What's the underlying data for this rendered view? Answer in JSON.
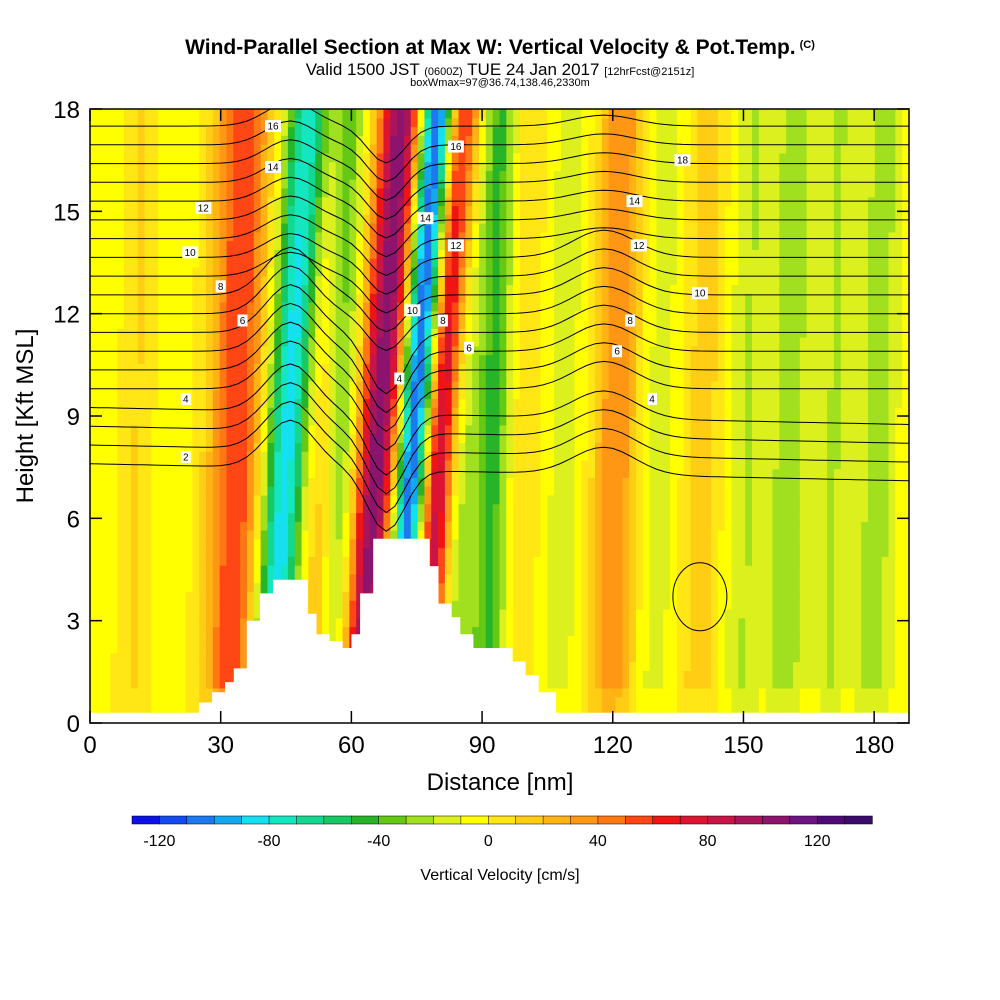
{
  "header": {
    "title": "Wind-Parallel Section at Max W: Vertical Velocity & Pot.Temp.",
    "copyright": "(C)",
    "valid_prefix": "Valid 1500 JST",
    "valid_utc": "(0600Z)",
    "valid_date": "TUE 24 Jan 2017",
    "forecast": "[12hrFcst@2151z]",
    "box_info": "boxWmax=97@36.74,138.46,2330m"
  },
  "chart_data": {
    "type": "heatmap",
    "title": "Wind-Parallel Section at Max W: Vertical Velocity & Pot.Temp.",
    "xlabel": "Distance [nm]",
    "ylabel": "Height [Kft MSL]",
    "xlim": [
      0,
      188
    ],
    "ylim": [
      0,
      18
    ],
    "xticks": [
      0,
      30,
      60,
      90,
      120,
      150,
      180
    ],
    "yticks": [
      0,
      3,
      6,
      9,
      12,
      15,
      18
    ],
    "colorbar": {
      "label": "Vertical Velocity [cm/s]",
      "min": -130,
      "max": 140,
      "step": 10,
      "tick_values": [
        -120,
        -80,
        -40,
        0,
        40,
        80,
        120
      ],
      "tick_labels": [
        "-120",
        "-80",
        "-40",
        "0",
        "40",
        "80",
        "120"
      ],
      "colors": [
        "#0a10e6",
        "#1448f0",
        "#1e78f0",
        "#14a8f0",
        "#14e0f0",
        "#14e6c0",
        "#14d890",
        "#18c864",
        "#28b428",
        "#64c814",
        "#a0e01e",
        "#dcf01e",
        "#ffff00",
        "#ffe614",
        "#ffcd14",
        "#ffb414",
        "#ff9614",
        "#ff7814",
        "#ff4614",
        "#f01414",
        "#dc1432",
        "#c81446",
        "#aa145a",
        "#8c146e",
        "#6e1482",
        "#500a78",
        "#3c0a6e"
      ]
    },
    "updraft_bands": [
      {
        "x": 2,
        "half_width": 6,
        "w": -6
      },
      {
        "x": 10,
        "half_width": 4,
        "w": 12
      },
      {
        "x": 18,
        "half_width": 5,
        "w": -8
      },
      {
        "x": 33,
        "half_width": 6,
        "w": 60
      },
      {
        "x": 43,
        "half_width": 5,
        "w": -90
      },
      {
        "x": 52,
        "half_width": 5,
        "w": 25
      },
      {
        "x": 57,
        "half_width": 4,
        "w": -40
      },
      {
        "x": 64,
        "half_width": 5,
        "w": 110
      },
      {
        "x": 72,
        "half_width": 4,
        "w": -125
      },
      {
        "x": 78,
        "half_width": 4,
        "w": 100
      },
      {
        "x": 84,
        "half_width": 4,
        "w": -30
      },
      {
        "x": 92,
        "half_width": 4,
        "w": -45
      },
      {
        "x": 98,
        "half_width": 5,
        "w": 10
      },
      {
        "x": 108,
        "half_width": 5,
        "w": -15
      },
      {
        "x": 120,
        "half_width": 5,
        "w": 40
      },
      {
        "x": 130,
        "half_width": 5,
        "w": -15
      },
      {
        "x": 140,
        "half_width": 5,
        "w": 15
      },
      {
        "x": 150,
        "half_width": 5,
        "w": -20
      },
      {
        "x": 160,
        "half_width": 5,
        "w": -25
      },
      {
        "x": 170,
        "half_width": 4,
        "w": -20
      },
      {
        "x": 180,
        "half_width": 5,
        "w": -25
      }
    ],
    "terrain": {
      "x": [
        0,
        22,
        25,
        28,
        31,
        33,
        36,
        39,
        42,
        48,
        50,
        52,
        55,
        58,
        60,
        62,
        65,
        68,
        75,
        78,
        80,
        83,
        85,
        88,
        95,
        97,
        100,
        103,
        107,
        188
      ],
      "height": [
        0.3,
        0.3,
        0.6,
        0.9,
        1.2,
        1.6,
        3.0,
        3.8,
        4.2,
        4.2,
        3.2,
        2.6,
        2.4,
        2.2,
        2.6,
        3.8,
        5.4,
        5.4,
        5.4,
        4.6,
        3.5,
        3.1,
        2.6,
        2.2,
        2.2,
        1.8,
        1.4,
        0.9,
        0.3,
        0.3
      ]
    },
    "theta_contour_labels": [
      {
        "text": "2",
        "x": 22,
        "y": 7.8
      },
      {
        "text": "4",
        "x": 22,
        "y": 9.5
      },
      {
        "text": "6",
        "x": 35,
        "y": 11.8
      },
      {
        "text": "8",
        "x": 30,
        "y": 12.8
      },
      {
        "text": "10",
        "x": 23,
        "y": 13.8
      },
      {
        "text": "12",
        "x": 26,
        "y": 15.1
      },
      {
        "text": "14",
        "x": 42,
        "y": 16.3
      },
      {
        "text": "16",
        "x": 42,
        "y": 17.5
      },
      {
        "text": "4",
        "x": 71,
        "y": 10.1
      },
      {
        "text": "10",
        "x": 74,
        "y": 12.1
      },
      {
        "text": "8",
        "x": 81,
        "y": 11.8
      },
      {
        "text": "6",
        "x": 87,
        "y": 11.0
      },
      {
        "text": "12",
        "x": 84,
        "y": 14.0
      },
      {
        "text": "14",
        "x": 77,
        "y": 14.8
      },
      {
        "text": "16",
        "x": 84,
        "y": 16.9
      },
      {
        "text": "18",
        "x": 136,
        "y": 16.5
      },
      {
        "text": "14",
        "x": 125,
        "y": 15.3
      },
      {
        "text": "12",
        "x": 126,
        "y": 14.0
      },
      {
        "text": "10",
        "x": 140,
        "y": 12.6
      },
      {
        "text": "8",
        "x": 124,
        "y": 11.8
      },
      {
        "text": "6",
        "x": 121,
        "y": 10.9
      },
      {
        "text": "4",
        "x": 129,
        "y": 9.5
      }
    ]
  }
}
